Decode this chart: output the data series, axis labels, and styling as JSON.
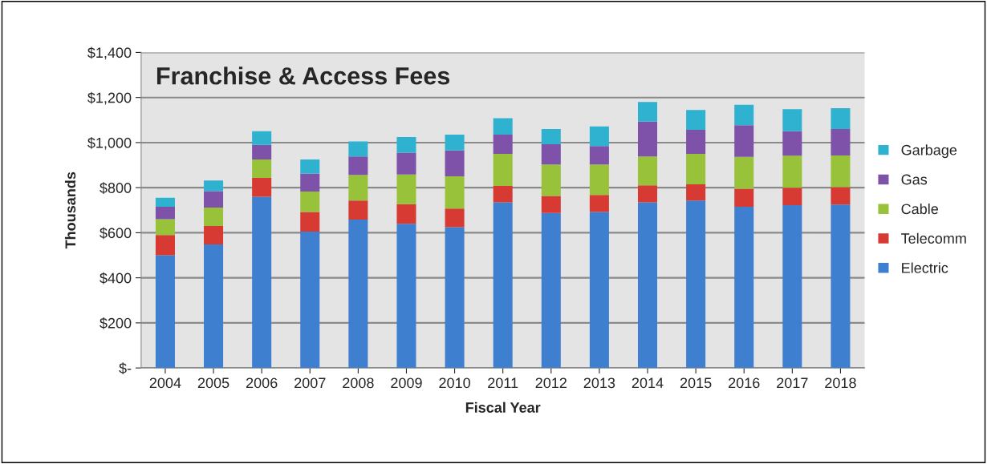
{
  "chart_data": {
    "type": "bar",
    "title": "Franchise & Access Fees",
    "xlabel": "Fiscal Year",
    "ylabel": "Thousands",
    "categories": [
      "2004",
      "2005",
      "2006",
      "2007",
      "2008",
      "2009",
      "2010",
      "2011",
      "2012",
      "2013",
      "2014",
      "2015",
      "2016",
      "2017",
      "2018"
    ],
    "stacked": true,
    "series": [
      {
        "name": "Electric",
        "color": "#3f7fd0",
        "values": [
          500,
          548,
          760,
          605,
          658,
          640,
          625,
          735,
          688,
          692,
          735,
          743,
          715,
          722,
          725
        ]
      },
      {
        "name": "Telecomm",
        "color": "#d63a32",
        "values": [
          90,
          82,
          83,
          87,
          85,
          87,
          82,
          73,
          75,
          76,
          75,
          72,
          80,
          78,
          77
        ]
      },
      {
        "name": "Cable",
        "color": "#98c23a",
        "values": [
          70,
          82,
          82,
          91,
          114,
          131,
          143,
          142,
          140,
          135,
          128,
          135,
          142,
          142,
          141
        ]
      },
      {
        "name": "Gas",
        "color": "#7e52a8",
        "values": [
          55,
          73,
          65,
          79,
          81,
          97,
          115,
          85,
          90,
          82,
          155,
          107,
          140,
          108,
          117
        ]
      },
      {
        "name": "Garbage",
        "color": "#2fb2cf",
        "values": [
          40,
          47,
          60,
          63,
          67,
          70,
          70,
          73,
          67,
          87,
          87,
          88,
          91,
          98,
          93
        ]
      }
    ],
    "ylim": [
      0,
      1400
    ],
    "yticks": [
      {
        "value": 0,
        "label": "$-"
      },
      {
        "value": 200,
        "label": "$200"
      },
      {
        "value": 400,
        "label": "$400"
      },
      {
        "value": 600,
        "label": "$600"
      },
      {
        "value": 800,
        "label": "$800"
      },
      {
        "value": 1000,
        "label": "$1,000"
      },
      {
        "value": 1200,
        "label": "$1,200"
      },
      {
        "value": 1400,
        "label": "$1,400"
      }
    ],
    "grid": "y",
    "legend": "right"
  }
}
